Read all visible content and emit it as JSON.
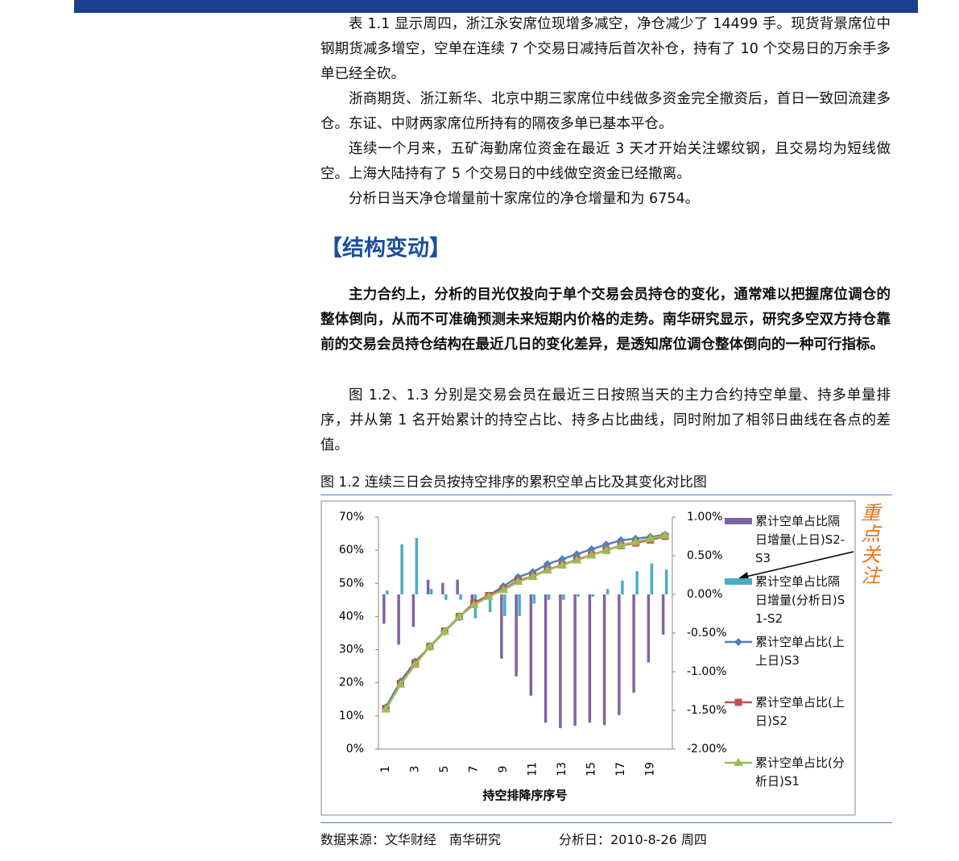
{
  "body": {
    "paragraphs": [
      "表 1.1 显示周四，浙江永安席位现增多减空，净仓减少了 14499 手。现货背景席位中钢期货减多增空，空单在连续 7 个交易日减持后首次补仓，持有了 10 个交易日的万余手多单已经全砍。",
      "浙商期货、浙江新华、北京中期三家席位中线做多资金完全撤资后，首日一致回流建多仓。东证、中财两家席位所持有的隔夜多单已基本平仓。",
      "连续一个月来，五矿海勤席位资金在最近 3 天才开始关注螺纹钢，且交易均为短线做空。上海大陆持有了 5 个交易日的中线做空资金已经撤离。",
      "分析日当天净仓增量前十家席位的净仓增量和为 6754。",
      "主力合约上，分析的目光仅投向于单个交易会员持仓的变化，通常难以把握席位调仓的整体倒向，从而不可准确预测未来短期内价格的走势。南华研究显示，研究多空双方持仓靠前的交易会员持仓结构在最近几日的变化差异，是透知席位调仓整体倒向的一种可行指标。",
      "图 1.2、1.3 分别是交易会员在最近三日按照当天的主力合约持空单量、持多单量排序，并从第 1 名开始累计的持空占比、持多占比曲线，同时附加了相邻日曲线在各点的差值。"
    ],
    "heading": "【结构变动】"
  },
  "figure": {
    "caption": "图 1.2 连续三日会员按持空排序的累积空单占比及其变化对比图",
    "source": "数据来源：文华财经　南华研究",
    "analysis_date": "分析日：2010-8-26 周四",
    "annotation": "重点关注"
  },
  "chart_data": {
    "type": "bar_line",
    "x_label": "持空排降序序号",
    "categories": [
      "1",
      null,
      "3",
      null,
      "5",
      null,
      "7",
      null,
      "9",
      null,
      "11",
      null,
      "13",
      null,
      "15",
      null,
      "17",
      null,
      "19",
      null
    ],
    "ylim": [
      0,
      70
    ],
    "yticks": [
      {
        "value": 0,
        "label": "0%"
      },
      {
        "value": 10,
        "label": "10%"
      },
      {
        "value": 20,
        "label": "20%"
      },
      {
        "value": 30,
        "label": "30%"
      },
      {
        "value": 40,
        "label": "40%"
      },
      {
        "value": 50,
        "label": "50%"
      },
      {
        "value": 60,
        "label": "60%"
      },
      {
        "value": 70,
        "label": "70%"
      }
    ],
    "y2lim": [
      -2,
      1
    ],
    "y2ticks": [
      {
        "value": 1,
        "label": "1.00%"
      },
      {
        "value": 0.5,
        "label": "0.50%"
      },
      {
        "value": 0,
        "label": "0.00%"
      },
      {
        "value": -0.5,
        "label": "-0.50%"
      },
      {
        "value": -1,
        "label": "-1.00%"
      },
      {
        "value": -1.5,
        "label": "-1.50%"
      },
      {
        "value": -2,
        "label": "-2.00%"
      }
    ],
    "series": [
      {
        "name": "累计空单占比隔日增量(上日)S2-S3",
        "type": "bar",
        "axis": "y2",
        "color": "#8064a2",
        "values": [
          -0.38,
          -0.65,
          -0.42,
          0.19,
          0.15,
          0.19,
          -0.08,
          -0.05,
          -0.83,
          -1.06,
          -1.31,
          -1.66,
          -1.73,
          -1.7,
          -1.66,
          -1.69,
          -1.56,
          -1.27,
          -0.88,
          -0.52
        ]
      },
      {
        "name": "累计空单占比隔日增量(分析日)S1-S2",
        "type": "bar",
        "axis": "y2",
        "color": "#4bacc6",
        "values": [
          0.05,
          0.65,
          0.73,
          0.07,
          -0.07,
          -0.07,
          -0.31,
          -0.23,
          -0.28,
          -0.28,
          -0.12,
          -0.07,
          -0.07,
          -0.03,
          -0.03,
          0.07,
          0.18,
          0.3,
          0.4,
          0.32
        ]
      },
      {
        "name": "累计空单占比(上上日)S3",
        "type": "line",
        "marker": "diamond",
        "color": "#4f81bd",
        "values": [
          12.6,
          20.4,
          26.4,
          30.8,
          35.4,
          39.8,
          44.1,
          46.3,
          49.1,
          51.9,
          53.4,
          55.8,
          57.3,
          58.8,
          60.3,
          61.7,
          63,
          63.5,
          64,
          64.7
        ]
      },
      {
        "name": "累计空单占比(上日)S2",
        "type": "line",
        "marker": "square",
        "color": "#c0504d",
        "values": [
          12.2,
          19.8,
          26,
          31,
          35.6,
          40,
          44,
          46.3,
          48.3,
          50.8,
          52.1,
          54.1,
          55.6,
          57.1,
          58.6,
          60,
          61.4,
          62.2,
          63.1,
          64.2
        ]
      },
      {
        "name": "累计空单占比(分析日)S1",
        "type": "line",
        "marker": "triangle",
        "color": "#9bbb59",
        "values": [
          12,
          19.5,
          25.5,
          31,
          35.5,
          40,
          43.5,
          46,
          48,
          50.5,
          52,
          54,
          55.5,
          57,
          58.5,
          60,
          61.5,
          62.5,
          63.5,
          64.5
        ]
      }
    ]
  }
}
